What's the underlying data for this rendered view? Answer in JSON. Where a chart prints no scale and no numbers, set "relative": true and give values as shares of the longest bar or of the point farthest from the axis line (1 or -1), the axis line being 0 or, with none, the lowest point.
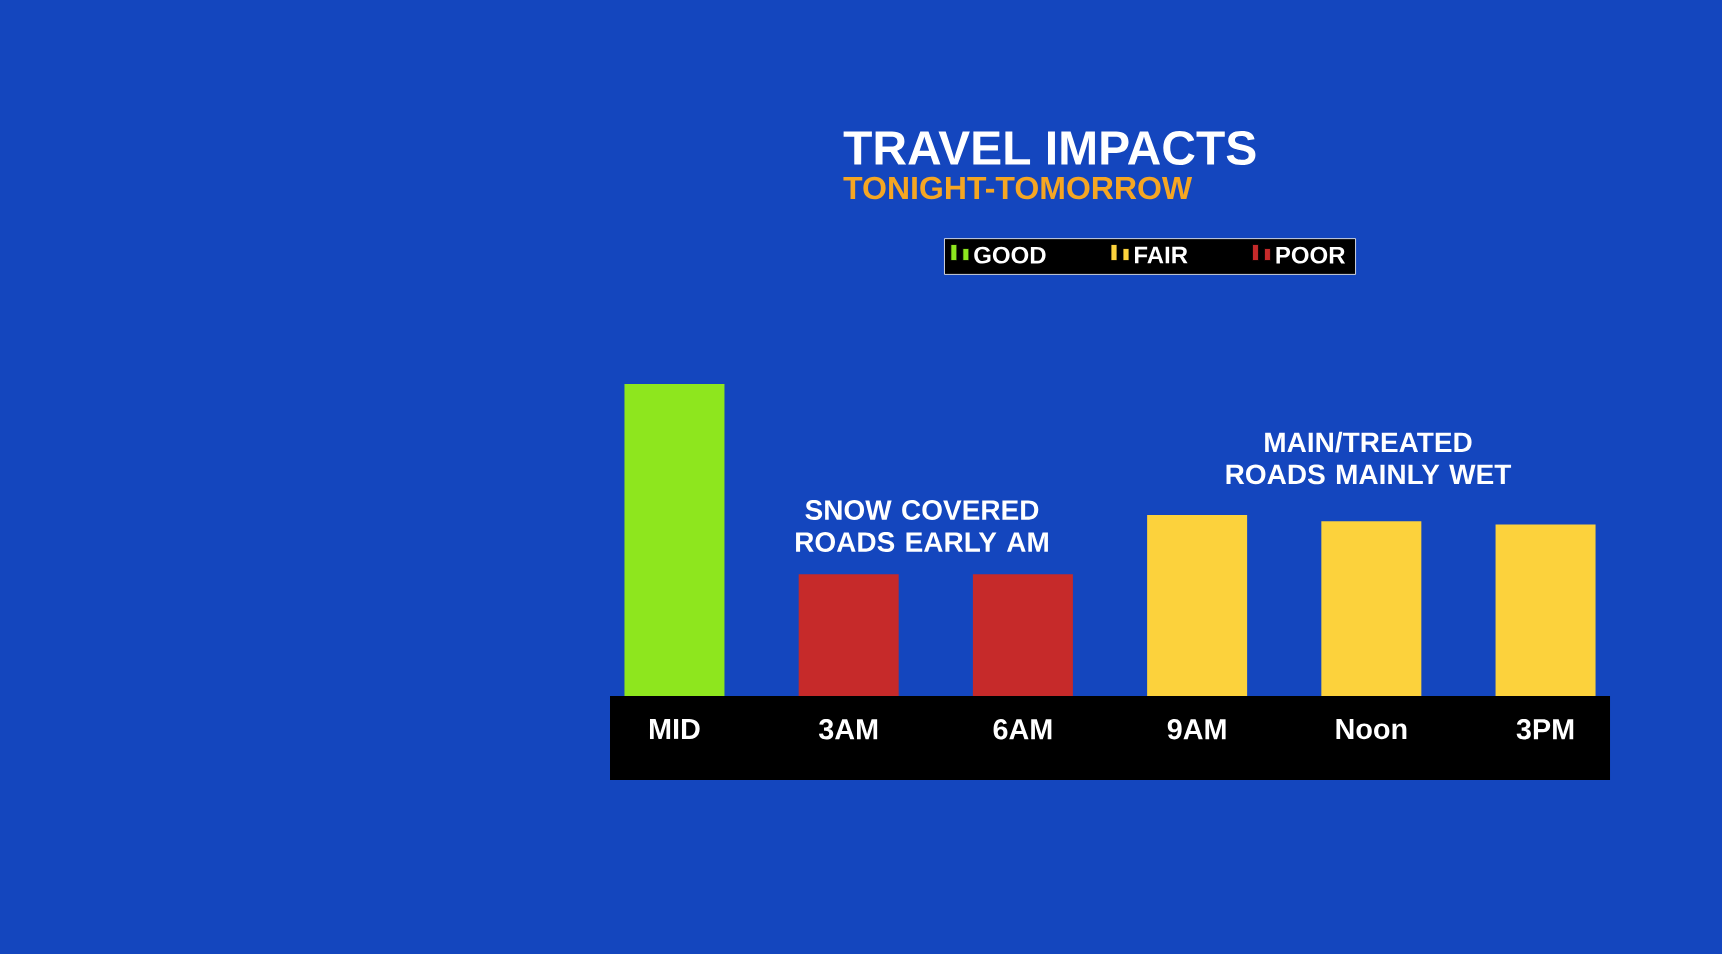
{
  "chart_data": {
    "type": "bar",
    "title": "TRAVEL IMPACTS",
    "subtitle": "TONIGHT-TOMORROW",
    "categories": [
      "MID",
      "3AM",
      "6AM",
      "9AM",
      "Noon",
      "3PM"
    ],
    "relative": true,
    "legend": "top",
    "series": [
      {
        "name": "GOOD",
        "color": "#8ee61e",
        "values": [
          1,
          null,
          null,
          null,
          null,
          null
        ]
      },
      {
        "name": "FAIR",
        "color": "#fcd23c",
        "values": [
          null,
          null,
          null,
          0.58,
          0.56,
          0.55
        ]
      },
      {
        "name": "POOR",
        "color": "#c62a2a",
        "values": [
          null,
          0.39,
          0.39,
          null,
          null,
          null
        ]
      }
    ],
    "annotations": [
      "SNOW COVERED ROADS EARLY AM",
      "MAIN/TREATED ROADS MAINLY WET"
    ]
  }
}
